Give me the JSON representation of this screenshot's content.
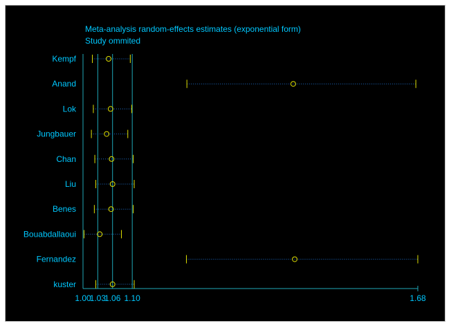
{
  "chart_data": {
    "type": "forest",
    "title": "Meta-analysis random-effects estimates (exponential form)",
    "subtitle": "Study ommited",
    "x_ticks": [
      {
        "value": 1.0,
        "label": "1.00"
      },
      {
        "value": 1.03,
        "label": "1.03"
      },
      {
        "value": 1.06,
        "label": "1.06"
      },
      {
        "value": 1.1,
        "label": "1.10"
      },
      {
        "value": 1.68,
        "label": "1.68"
      }
    ],
    "xlim": [
      1.0,
      1.68
    ],
    "reference_lines": [
      1.03,
      1.06,
      1.1
    ],
    "studies": [
      {
        "name": "Kempf",
        "estimate": 1.052,
        "lower": 1.019,
        "upper": 1.096
      },
      {
        "name": "Anand",
        "estimate": 1.427,
        "lower": 1.211,
        "upper": 1.676
      },
      {
        "name": "Lok",
        "estimate": 1.056,
        "lower": 1.021,
        "upper": 1.099
      },
      {
        "name": "Jungbauer",
        "estimate": 1.048,
        "lower": 1.017,
        "upper": 1.091
      },
      {
        "name": "Chan",
        "estimate": 1.058,
        "lower": 1.024,
        "upper": 1.102
      },
      {
        "name": "Liu",
        "estimate": 1.06,
        "lower": 1.026,
        "upper": 1.104
      },
      {
        "name": "Benes",
        "estimate": 1.057,
        "lower": 1.023,
        "upper": 1.102
      },
      {
        "name": "Bouabdallaoui",
        "estimate": 1.034,
        "lower": 1.002,
        "upper": 1.078
      },
      {
        "name": "Fernandez",
        "estimate": 1.43,
        "lower": 1.21,
        "upper": 1.68
      },
      {
        "name": "kuster",
        "estimate": 1.06,
        "lower": 1.026,
        "upper": 1.104
      }
    ]
  },
  "colors": {
    "background": "#000000",
    "text": "#00c8ff",
    "axis": "#1fa8b8",
    "ci_line": "#1f6fcc",
    "marker": "#e0e000"
  }
}
